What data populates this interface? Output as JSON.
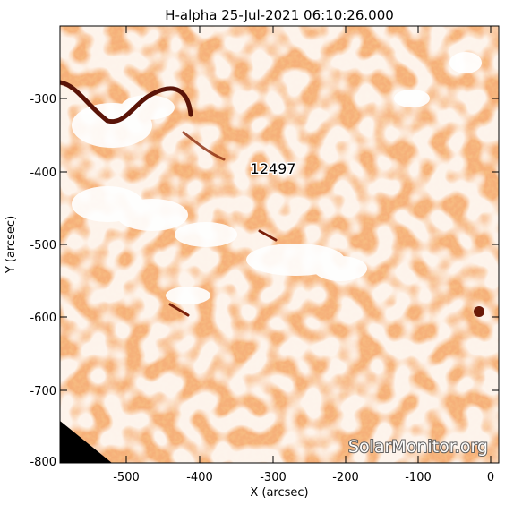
{
  "title": "H-alpha 25-Jul-2021 06:10:26.000",
  "x_axis": {
    "label": "X (arcsec)",
    "ticks": [
      "-500",
      "-400",
      "-300",
      "-200",
      "-100",
      "0"
    ]
  },
  "y_axis": {
    "label": "Y (arcsec)",
    "ticks": [
      "-300",
      "-400",
      "-500",
      "-600",
      "-700",
      "-800"
    ]
  },
  "region_label": "12497",
  "watermark": "SolarMonitor.org",
  "colors": {
    "background": "#ffffff",
    "plot_base": "#f7b27a",
    "mid_tone": "#e9803b",
    "dark_tone": "#b64a14",
    "filament": "#5a1408",
    "off_limb": "#000000"
  }
}
